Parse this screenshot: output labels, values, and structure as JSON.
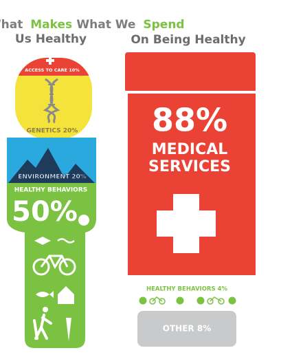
{
  "left": {
    "title": {
      "line1": [
        "What",
        "Makes"
      ],
      "line2": "Us Healthy"
    },
    "access": "ACCESS TO CARE 10%",
    "genetics": "GENETICS 20%",
    "environment": "ENVIRONMENT 20%",
    "behaviors": "HEALTHY BEHAVIORS",
    "behaviors_pct": "50%"
  },
  "right": {
    "title": {
      "line1": [
        "What We",
        "Spend"
      ],
      "line2": "On Being Healthy"
    },
    "medical_pct": "88%",
    "medical_line1": "MEDICAL",
    "medical_line2": "SERVICES",
    "behaviors": "HEALTHY BEHAVIORS 4%",
    "other": "OTHER 8%"
  }
}
